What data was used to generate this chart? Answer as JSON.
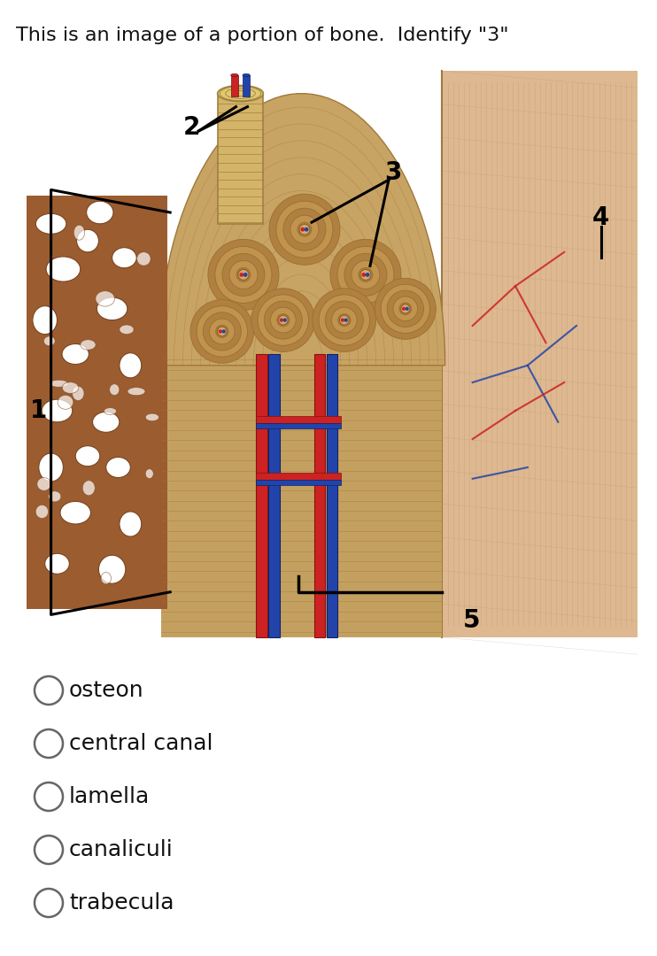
{
  "title": "This is an image of a portion of bone.  Identify \"3\"",
  "title_fontsize": 16,
  "title_color": "#111111",
  "bg_color": "#ffffff",
  "options": [
    "osteon",
    "central canal",
    "lamella",
    "canaliculi",
    "trabecula"
  ],
  "options_fontsize": 18,
  "compact_bone_color": "#C8A96E",
  "compact_bone_dark": "#B8925A",
  "spongy_bone_color": "#8B5A2B",
  "spongy_hole_color": "#D4956A",
  "periosteum_color": "#D4A882",
  "lamella_line_color": "#A07840",
  "osteon_ring_color": "#B08848",
  "vessel_red": "#CC2222",
  "vessel_blue": "#2244AA",
  "label_color": "#000000",
  "label_fontsize": 20,
  "line_color": "#000000"
}
